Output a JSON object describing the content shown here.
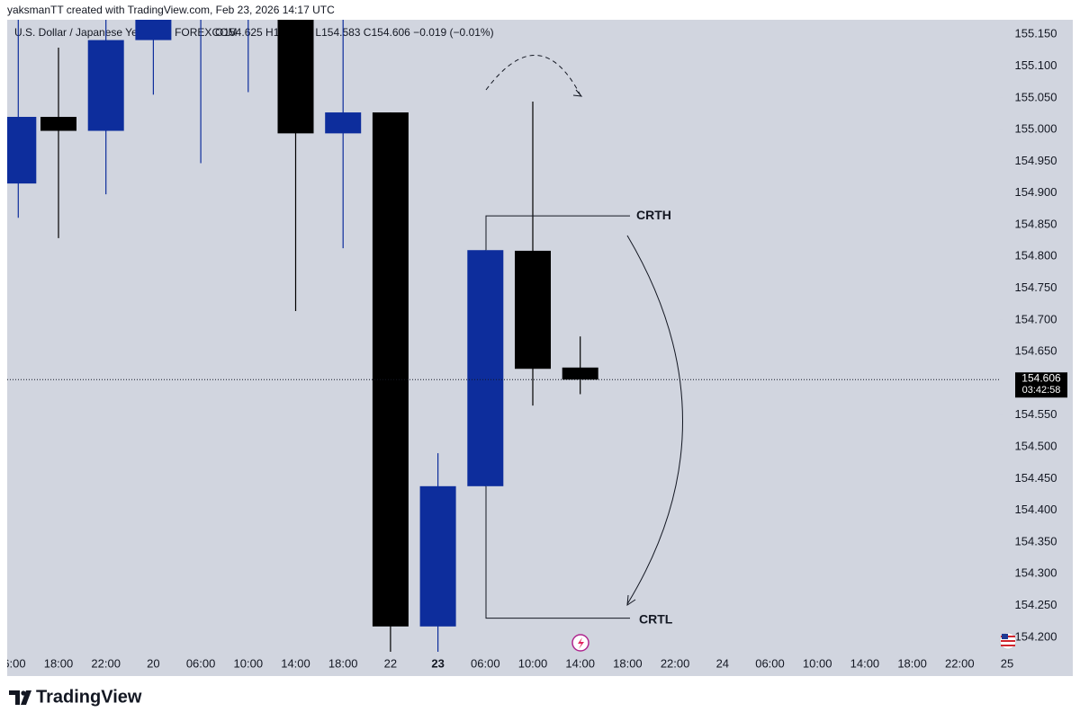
{
  "header": {
    "credit": "yaksmanTT created with TradingView.com, Feb 23, 2026 14:17 UTC"
  },
  "chart_data": {
    "type": "candlestick",
    "title": "U.S. Dollar / Japanese Yen · 4h · FOREXCOM",
    "subtitle": "O154.625  H154.674  L154.583  C154.606  −0.019 (−0.01%)",
    "categories": [
      "06:00",
      "18:00",
      "22:00",
      "20",
      "06:00",
      "10:00",
      "14:00",
      "18:00",
      "22",
      "23",
      "06:00",
      "10:00",
      "14:00",
      "18:00",
      "22:00",
      "24",
      "06:00",
      "10:00",
      "14:00",
      "18:00",
      "22:00",
      "25"
    ],
    "open": [
      154.915,
      155.02,
      154.998,
      155.141,
      155.2,
      155.3,
      155.25,
      154.994,
      155.027,
      154.217,
      154.438,
      154.809,
      154.625,
      null,
      null,
      null,
      null,
      null,
      null,
      null,
      null,
      null
    ],
    "high": [
      155.19,
      155.129,
      155.18,
      155.22,
      155.3,
      155.38,
      155.3,
      155.18,
      155.027,
      154.49,
      154.81,
      155.044,
      154.674,
      null,
      null,
      null,
      null,
      null,
      null,
      null,
      null,
      null
    ],
    "low": [
      154.861,
      154.829,
      154.898,
      155.055,
      154.947,
      155.059,
      154.714,
      154.813,
      154.177,
      154.177,
      154.438,
      154.565,
      154.583,
      null,
      null,
      null,
      null,
      null,
      null,
      null,
      null,
      null
    ],
    "close": [
      155.02,
      154.998,
      155.141,
      155.2,
      155.25,
      155.35,
      154.994,
      155.027,
      154.217,
      154.438,
      154.81,
      154.623,
      154.606,
      null,
      null,
      null,
      null,
      null,
      null,
      null,
      null,
      null
    ],
    "up_color": "#0d2d9c",
    "down_color": "#000000",
    "ylim": [
      154.17,
      155.173
    ],
    "yticks": [
      {
        "value": 154.2,
        "label": "154.200"
      },
      {
        "value": 154.25,
        "label": "154.250"
      },
      {
        "value": 154.3,
        "label": "154.300"
      },
      {
        "value": 154.35,
        "label": "154.350"
      },
      {
        "value": 154.4,
        "label": "154.400"
      },
      {
        "value": 154.45,
        "label": "154.450"
      },
      {
        "value": 154.5,
        "label": "154.500"
      },
      {
        "value": 154.55,
        "label": "154.550"
      },
      {
        "value": 154.6,
        "label": "154.600"
      },
      {
        "value": 154.65,
        "label": "154.650"
      },
      {
        "value": 154.7,
        "label": "154.700"
      },
      {
        "value": 154.75,
        "label": "154.750"
      },
      {
        "value": 154.8,
        "label": "154.800"
      },
      {
        "value": 154.85,
        "label": "154.850"
      },
      {
        "value": 154.9,
        "label": "154.900"
      },
      {
        "value": 154.95,
        "label": "154.950"
      },
      {
        "value": 155.0,
        "label": "155.000"
      },
      {
        "value": 155.05,
        "label": "155.050"
      },
      {
        "value": 155.1,
        "label": "155.100"
      },
      {
        "value": 155.15,
        "label": "155.150"
      }
    ],
    "last_price": {
      "value": 154.606,
      "label": "154.606"
    },
    "countdown": "03:42:58",
    "annotations": [
      {
        "text": "CRTH",
        "value": 154.864
      },
      {
        "text": "CRTL",
        "value": 154.23
      }
    ]
  },
  "footer": {
    "brand": "TradingView"
  }
}
